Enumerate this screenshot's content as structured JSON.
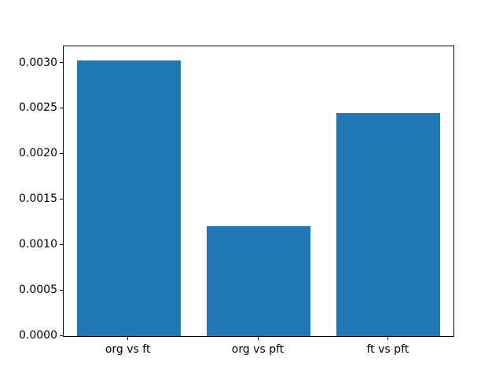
{
  "figure": {
    "background": "#ffffff",
    "spine_color": "#000000",
    "tick_color": "#000000",
    "text_color": "#000000"
  },
  "chart_data": {
    "type": "bar",
    "title": "",
    "xlabel": "",
    "ylabel": "",
    "categories": [
      "org vs ft",
      "org vs pft",
      "ft vs pft"
    ],
    "values": [
      0.003035,
      0.001208,
      0.002449
    ],
    "bar_color": "#1f77b4",
    "bar_width_fraction": 0.8,
    "ylim": [
      0,
      0.003186
    ],
    "yticks": [
      0.0,
      0.0005,
      0.001,
      0.0015,
      0.002,
      0.0025,
      0.003
    ],
    "ytick_labels": [
      "0.0000",
      "0.0005",
      "0.0010",
      "0.0015",
      "0.0020",
      "0.0025",
      "0.0030"
    ],
    "grid": false,
    "legend_position": "none"
  }
}
